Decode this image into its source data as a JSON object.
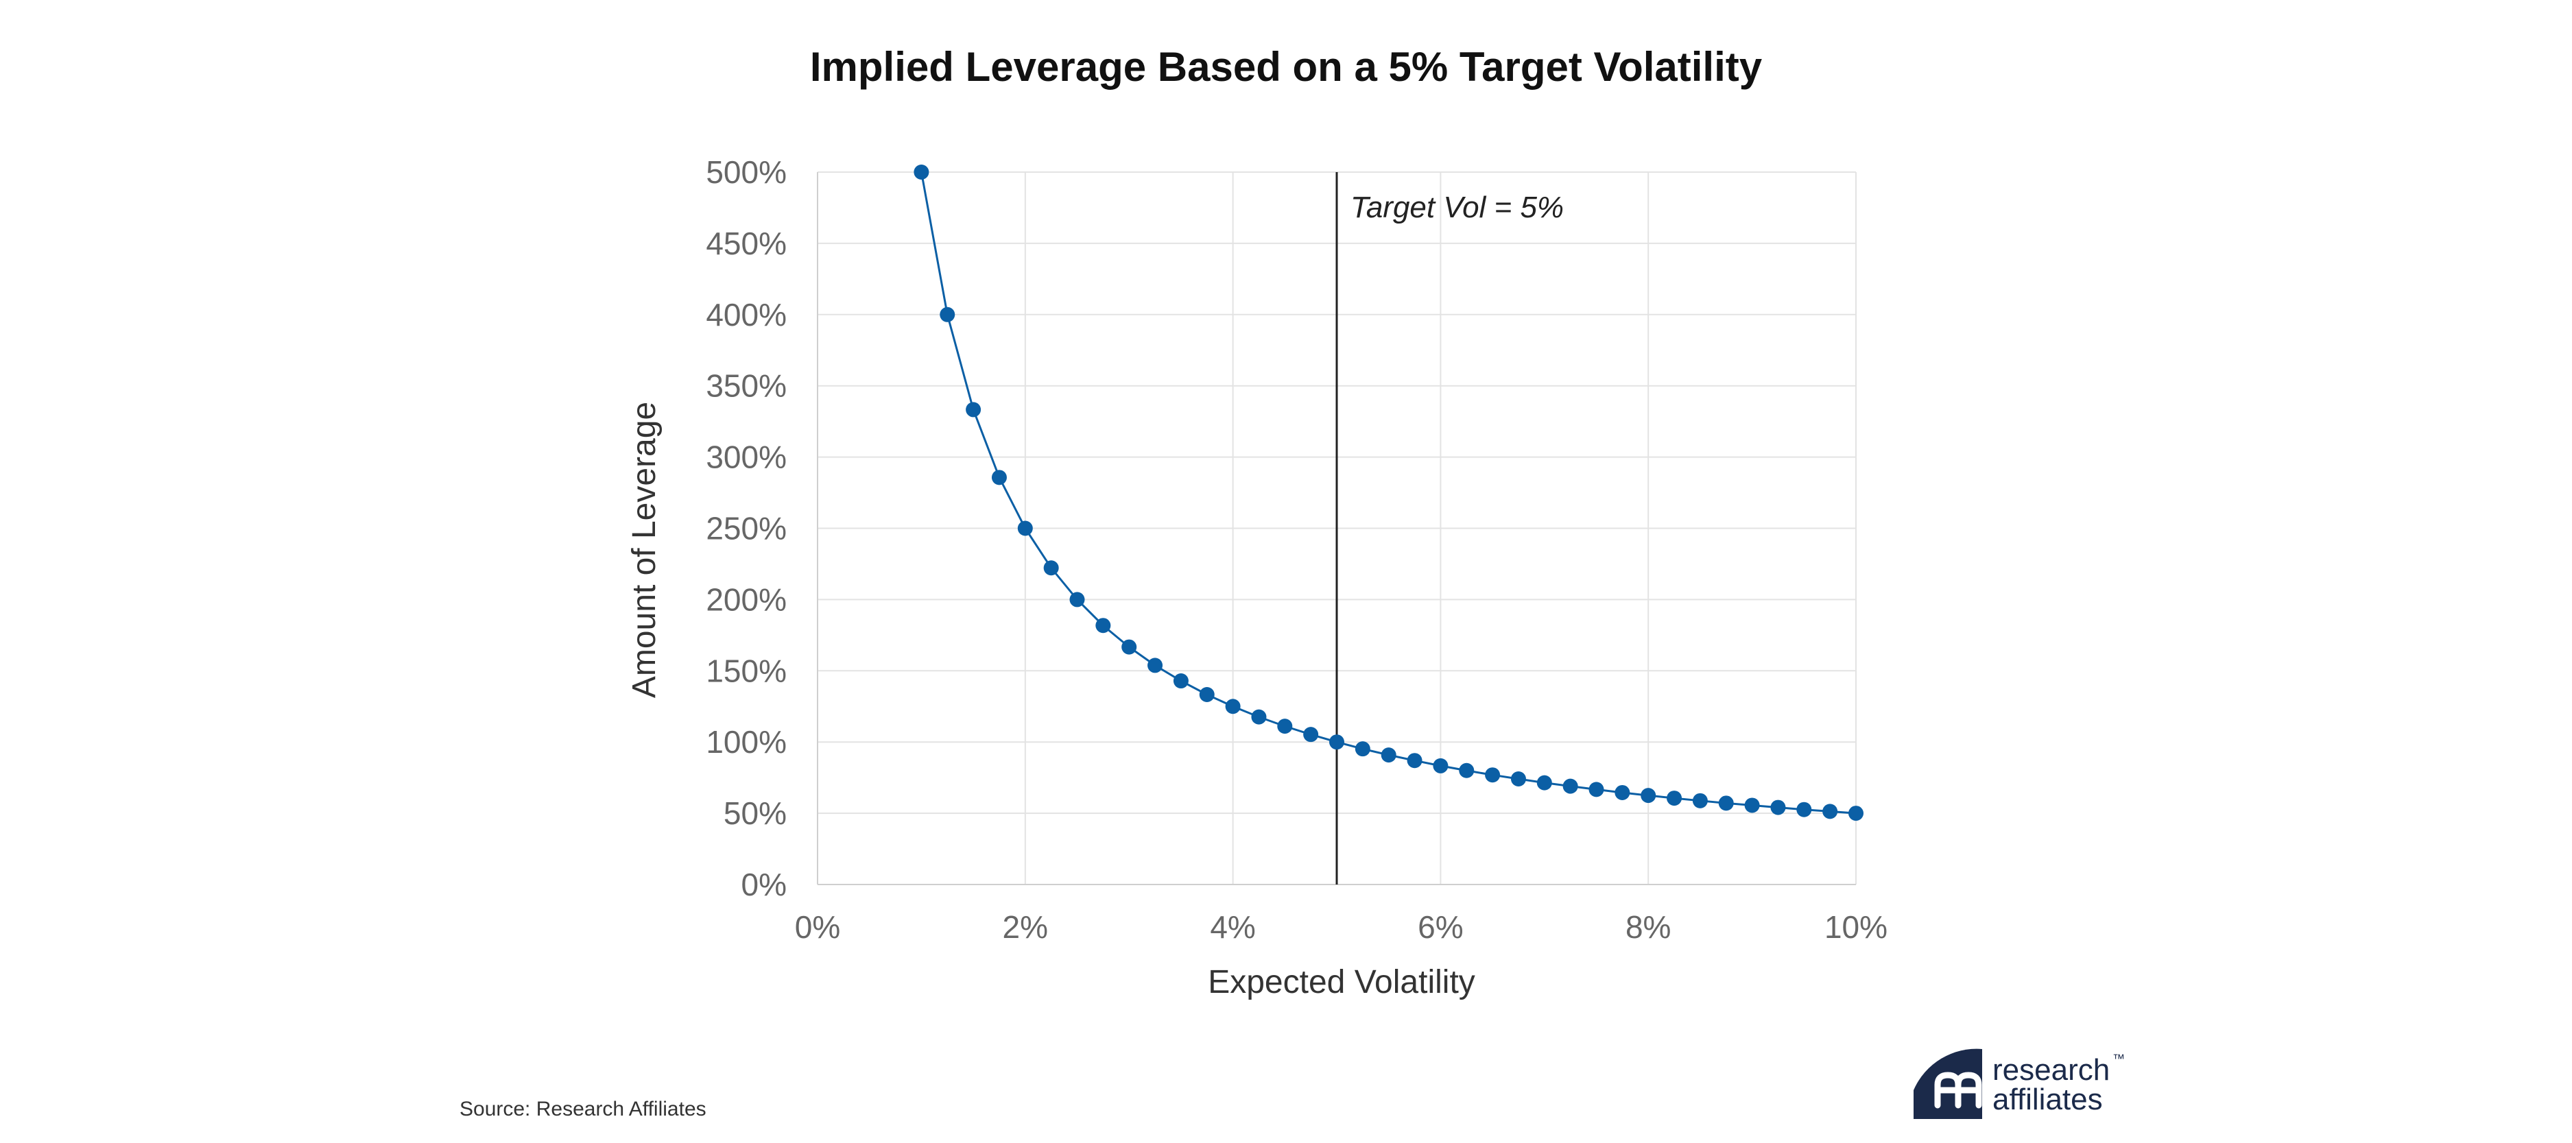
{
  "chart_data": {
    "type": "line",
    "title": "Implied Leverage Based on a 5% Target Volatility",
    "xlabel": "Expected Volatility",
    "ylabel": "Amount of Leverage",
    "xlim": [
      0,
      10
    ],
    "ylim": [
      0,
      500
    ],
    "x_ticks": [
      "0%",
      "2%",
      "4%",
      "6%",
      "8%",
      "10%"
    ],
    "y_ticks": [
      "0%",
      "50%",
      "100%",
      "150%",
      "200%",
      "250%",
      "300%",
      "350%",
      "400%",
      "450%",
      "500%"
    ],
    "grid": true,
    "series": [
      {
        "name": "",
        "color": "#0b5fa5",
        "x": [
          1.0,
          1.25,
          1.5,
          1.75,
          2.0,
          2.25,
          2.5,
          2.75,
          3.0,
          3.25,
          3.5,
          3.75,
          4.0,
          4.25,
          4.5,
          4.75,
          5.0,
          5.25,
          5.5,
          5.75,
          6.0,
          6.25,
          6.5,
          6.75,
          7.0,
          7.25,
          7.5,
          7.75,
          8.0,
          8.25,
          8.5,
          8.75,
          9.0,
          9.25,
          9.5,
          9.75,
          10.0
        ],
        "values": [
          500,
          400,
          333.3,
          285.7,
          250,
          222.2,
          200,
          181.8,
          166.7,
          153.8,
          142.9,
          133.3,
          125,
          117.6,
          111.1,
          105.3,
          100,
          95.2,
          90.9,
          87.0,
          83.3,
          80,
          76.9,
          74.1,
          71.4,
          69.0,
          66.7,
          64.5,
          62.5,
          60.6,
          58.8,
          57.1,
          55.6,
          54.1,
          52.6,
          51.3,
          50
        ]
      }
    ],
    "annotations": [
      {
        "type": "vline",
        "x": 5,
        "label": "Target Vol = 5%",
        "color": "#222222"
      }
    ]
  },
  "footer": {
    "source": "Source: Research Affiliates",
    "brand_line1": "research",
    "brand_line2": "affiliates",
    "brand_tm": "™",
    "brand_color": "#1b2a4a"
  }
}
